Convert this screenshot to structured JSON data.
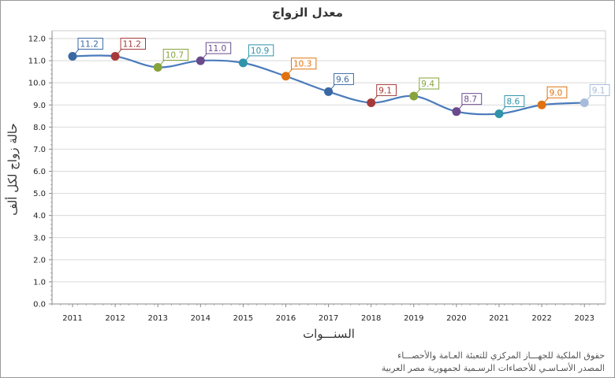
{
  "chart_data": {
    "type": "line",
    "title": "معدل الزواج",
    "xlabel": "السنـــوات",
    "ylabel": "حالة زواج لكل ألف",
    "categories": [
      "2011",
      "2012",
      "2013",
      "2014",
      "2015",
      "2016",
      "2017",
      "2018",
      "2019",
      "2020",
      "2021",
      "2022",
      "2023"
    ],
    "values": [
      11.2,
      11.2,
      10.7,
      11.0,
      10.9,
      10.3,
      9.6,
      9.1,
      9.4,
      8.7,
      8.6,
      9.0,
      9.1
    ],
    "data_labels": [
      "11.2",
      "11.2",
      "10.7",
      "11.0",
      "10.9",
      "10.3",
      "9.6",
      "9.1",
      "9.4",
      "8.7",
      "8.6",
      "9.0",
      "9.1"
    ],
    "point_colors": [
      "#3a68a4",
      "#a63a3a",
      "#86a33c",
      "#6a4a8c",
      "#2f93aa",
      "#e0720f",
      "#3a68a4",
      "#a63a3a",
      "#86a33c",
      "#6a4a8c",
      "#2f93aa",
      "#e0720f",
      "#a6bcda"
    ],
    "line_color": "#4a7bbb",
    "ylim": [
      0,
      12
    ],
    "yticks": [
      "0.0",
      "1.0",
      "2.0",
      "3.0",
      "4.0",
      "5.0",
      "6.0",
      "7.0",
      "8.0",
      "9.0",
      "10.0",
      "11.0",
      "12.0"
    ],
    "grid": true,
    "smooth": true,
    "legend": "none"
  },
  "credits": [
    "حقوق الملكية للجهـــاز المركزي للتعبئة العـامة والأحصـــاء",
    "المصدر الأسـاسـي للأحصاءات الرسـمية لجمهورية مصر العربية"
  ]
}
